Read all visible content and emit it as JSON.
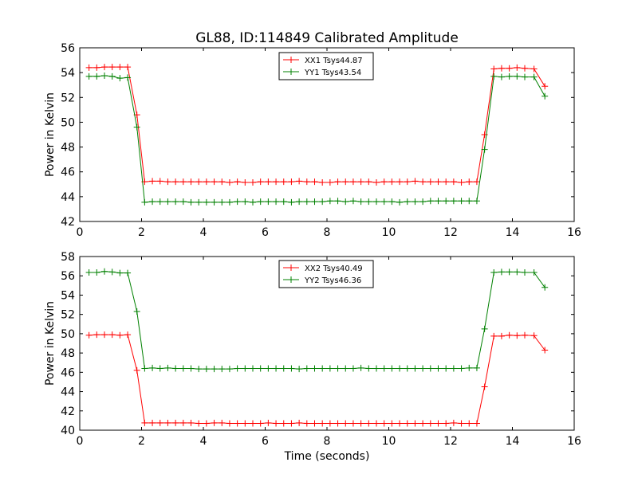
{
  "figure": {
    "title": "GL88, ID:114849 Calibrated Amplitude"
  },
  "chart_data": [
    {
      "type": "line",
      "title": "GL88, ID:114849 Calibrated Amplitude",
      "xlabel": "",
      "ylabel": "Power in Kelvin",
      "xlim": [
        0,
        16
      ],
      "ylim": [
        42,
        56
      ],
      "xticks": [
        0,
        2,
        4,
        6,
        8,
        10,
        12,
        14,
        16
      ],
      "yticks": [
        42,
        44,
        46,
        48,
        50,
        52,
        54,
        56
      ],
      "grid": false,
      "legend_position": "top-center",
      "x": [
        0.3,
        0.55,
        0.8,
        1.05,
        1.3,
        1.55,
        1.85,
        2.1,
        2.35,
        2.6,
        2.85,
        3.1,
        3.35,
        3.6,
        3.85,
        4.1,
        4.35,
        4.6,
        4.85,
        5.1,
        5.35,
        5.6,
        5.85,
        6.1,
        6.35,
        6.6,
        6.85,
        7.1,
        7.35,
        7.6,
        7.85,
        8.1,
        8.35,
        8.6,
        8.85,
        9.1,
        9.35,
        9.6,
        9.85,
        10.1,
        10.35,
        10.6,
        10.85,
        11.1,
        11.35,
        11.6,
        11.85,
        12.1,
        12.35,
        12.6,
        12.85,
        13.1,
        13.4,
        13.65,
        13.9,
        14.15,
        14.4,
        14.7,
        15.05
      ],
      "series": [
        {
          "name": "XX1 Tsys44.87",
          "color": "#ff0000",
          "values": [
            54.4,
            54.4,
            54.45,
            54.45,
            54.45,
            54.45,
            50.6,
            45.2,
            45.25,
            45.25,
            45.2,
            45.2,
            45.2,
            45.2,
            45.2,
            45.2,
            45.2,
            45.2,
            45.15,
            45.2,
            45.15,
            45.15,
            45.2,
            45.2,
            45.2,
            45.2,
            45.2,
            45.25,
            45.2,
            45.2,
            45.15,
            45.15,
            45.2,
            45.2,
            45.2,
            45.2,
            45.2,
            45.15,
            45.2,
            45.2,
            45.2,
            45.2,
            45.25,
            45.2,
            45.2,
            45.2,
            45.2,
            45.2,
            45.15,
            45.2,
            45.2,
            49.0,
            54.3,
            54.35,
            54.35,
            54.4,
            54.35,
            54.3,
            52.9
          ]
        },
        {
          "name": "YY1 Tsys43.54",
          "color": "#008000",
          "values": [
            53.7,
            53.7,
            53.75,
            53.7,
            53.55,
            53.6,
            49.6,
            43.55,
            43.6,
            43.6,
            43.6,
            43.6,
            43.6,
            43.55,
            43.55,
            43.55,
            43.55,
            43.55,
            43.55,
            43.6,
            43.6,
            43.55,
            43.6,
            43.6,
            43.6,
            43.6,
            43.55,
            43.6,
            43.6,
            43.6,
            43.6,
            43.65,
            43.65,
            43.6,
            43.65,
            43.6,
            43.6,
            43.6,
            43.6,
            43.6,
            43.55,
            43.6,
            43.6,
            43.6,
            43.65,
            43.65,
            43.65,
            43.65,
            43.65,
            43.65,
            43.65,
            47.8,
            53.7,
            53.65,
            53.7,
            53.7,
            53.65,
            53.65,
            52.1
          ]
        }
      ]
    },
    {
      "type": "line",
      "title": "",
      "xlabel": "Time (seconds)",
      "ylabel": "Power in Kelvin",
      "xlim": [
        0,
        16
      ],
      "ylim": [
        40,
        58
      ],
      "xticks": [
        0,
        2,
        4,
        6,
        8,
        10,
        12,
        14,
        16
      ],
      "yticks": [
        40,
        42,
        44,
        46,
        48,
        50,
        52,
        54,
        56,
        58
      ],
      "grid": false,
      "legend_position": "top-center",
      "x": [
        0.3,
        0.55,
        0.8,
        1.05,
        1.3,
        1.55,
        1.85,
        2.1,
        2.35,
        2.6,
        2.85,
        3.1,
        3.35,
        3.6,
        3.85,
        4.1,
        4.35,
        4.6,
        4.85,
        5.1,
        5.35,
        5.6,
        5.85,
        6.1,
        6.35,
        6.6,
        6.85,
        7.1,
        7.35,
        7.6,
        7.85,
        8.1,
        8.35,
        8.6,
        8.85,
        9.1,
        9.35,
        9.6,
        9.85,
        10.1,
        10.35,
        10.6,
        10.85,
        11.1,
        11.35,
        11.6,
        11.85,
        12.1,
        12.35,
        12.6,
        12.85,
        13.1,
        13.4,
        13.65,
        13.9,
        14.15,
        14.4,
        14.7,
        15.05
      ],
      "series": [
        {
          "name": "XX2 Tsys40.49",
          "color": "#ff0000",
          "values": [
            49.85,
            49.9,
            49.9,
            49.9,
            49.85,
            49.9,
            46.2,
            40.75,
            40.75,
            40.75,
            40.75,
            40.75,
            40.75,
            40.75,
            40.7,
            40.7,
            40.75,
            40.75,
            40.7,
            40.7,
            40.7,
            40.7,
            40.7,
            40.75,
            40.7,
            40.7,
            40.7,
            40.75,
            40.7,
            40.7,
            40.7,
            40.7,
            40.7,
            40.7,
            40.7,
            40.7,
            40.7,
            40.7,
            40.7,
            40.7,
            40.7,
            40.7,
            40.7,
            40.7,
            40.7,
            40.7,
            40.7,
            40.75,
            40.7,
            40.7,
            40.7,
            44.5,
            49.75,
            49.75,
            49.85,
            49.8,
            49.85,
            49.8,
            48.3
          ]
        },
        {
          "name": "YY2 Tsys46.36",
          "color": "#008000",
          "values": [
            56.35,
            56.35,
            56.45,
            56.4,
            56.3,
            56.3,
            52.3,
            46.4,
            46.45,
            46.4,
            46.45,
            46.4,
            46.4,
            46.4,
            46.35,
            46.35,
            46.35,
            46.35,
            46.35,
            46.4,
            46.4,
            46.4,
            46.4,
            46.4,
            46.4,
            46.4,
            46.4,
            46.35,
            46.4,
            46.4,
            46.4,
            46.4,
            46.4,
            46.4,
            46.4,
            46.45,
            46.4,
            46.4,
            46.4,
            46.4,
            46.4,
            46.4,
            46.4,
            46.4,
            46.4,
            46.4,
            46.4,
            46.4,
            46.4,
            46.45,
            46.45,
            50.5,
            56.35,
            56.4,
            56.4,
            56.4,
            56.35,
            56.35,
            54.8
          ]
        }
      ]
    }
  ]
}
